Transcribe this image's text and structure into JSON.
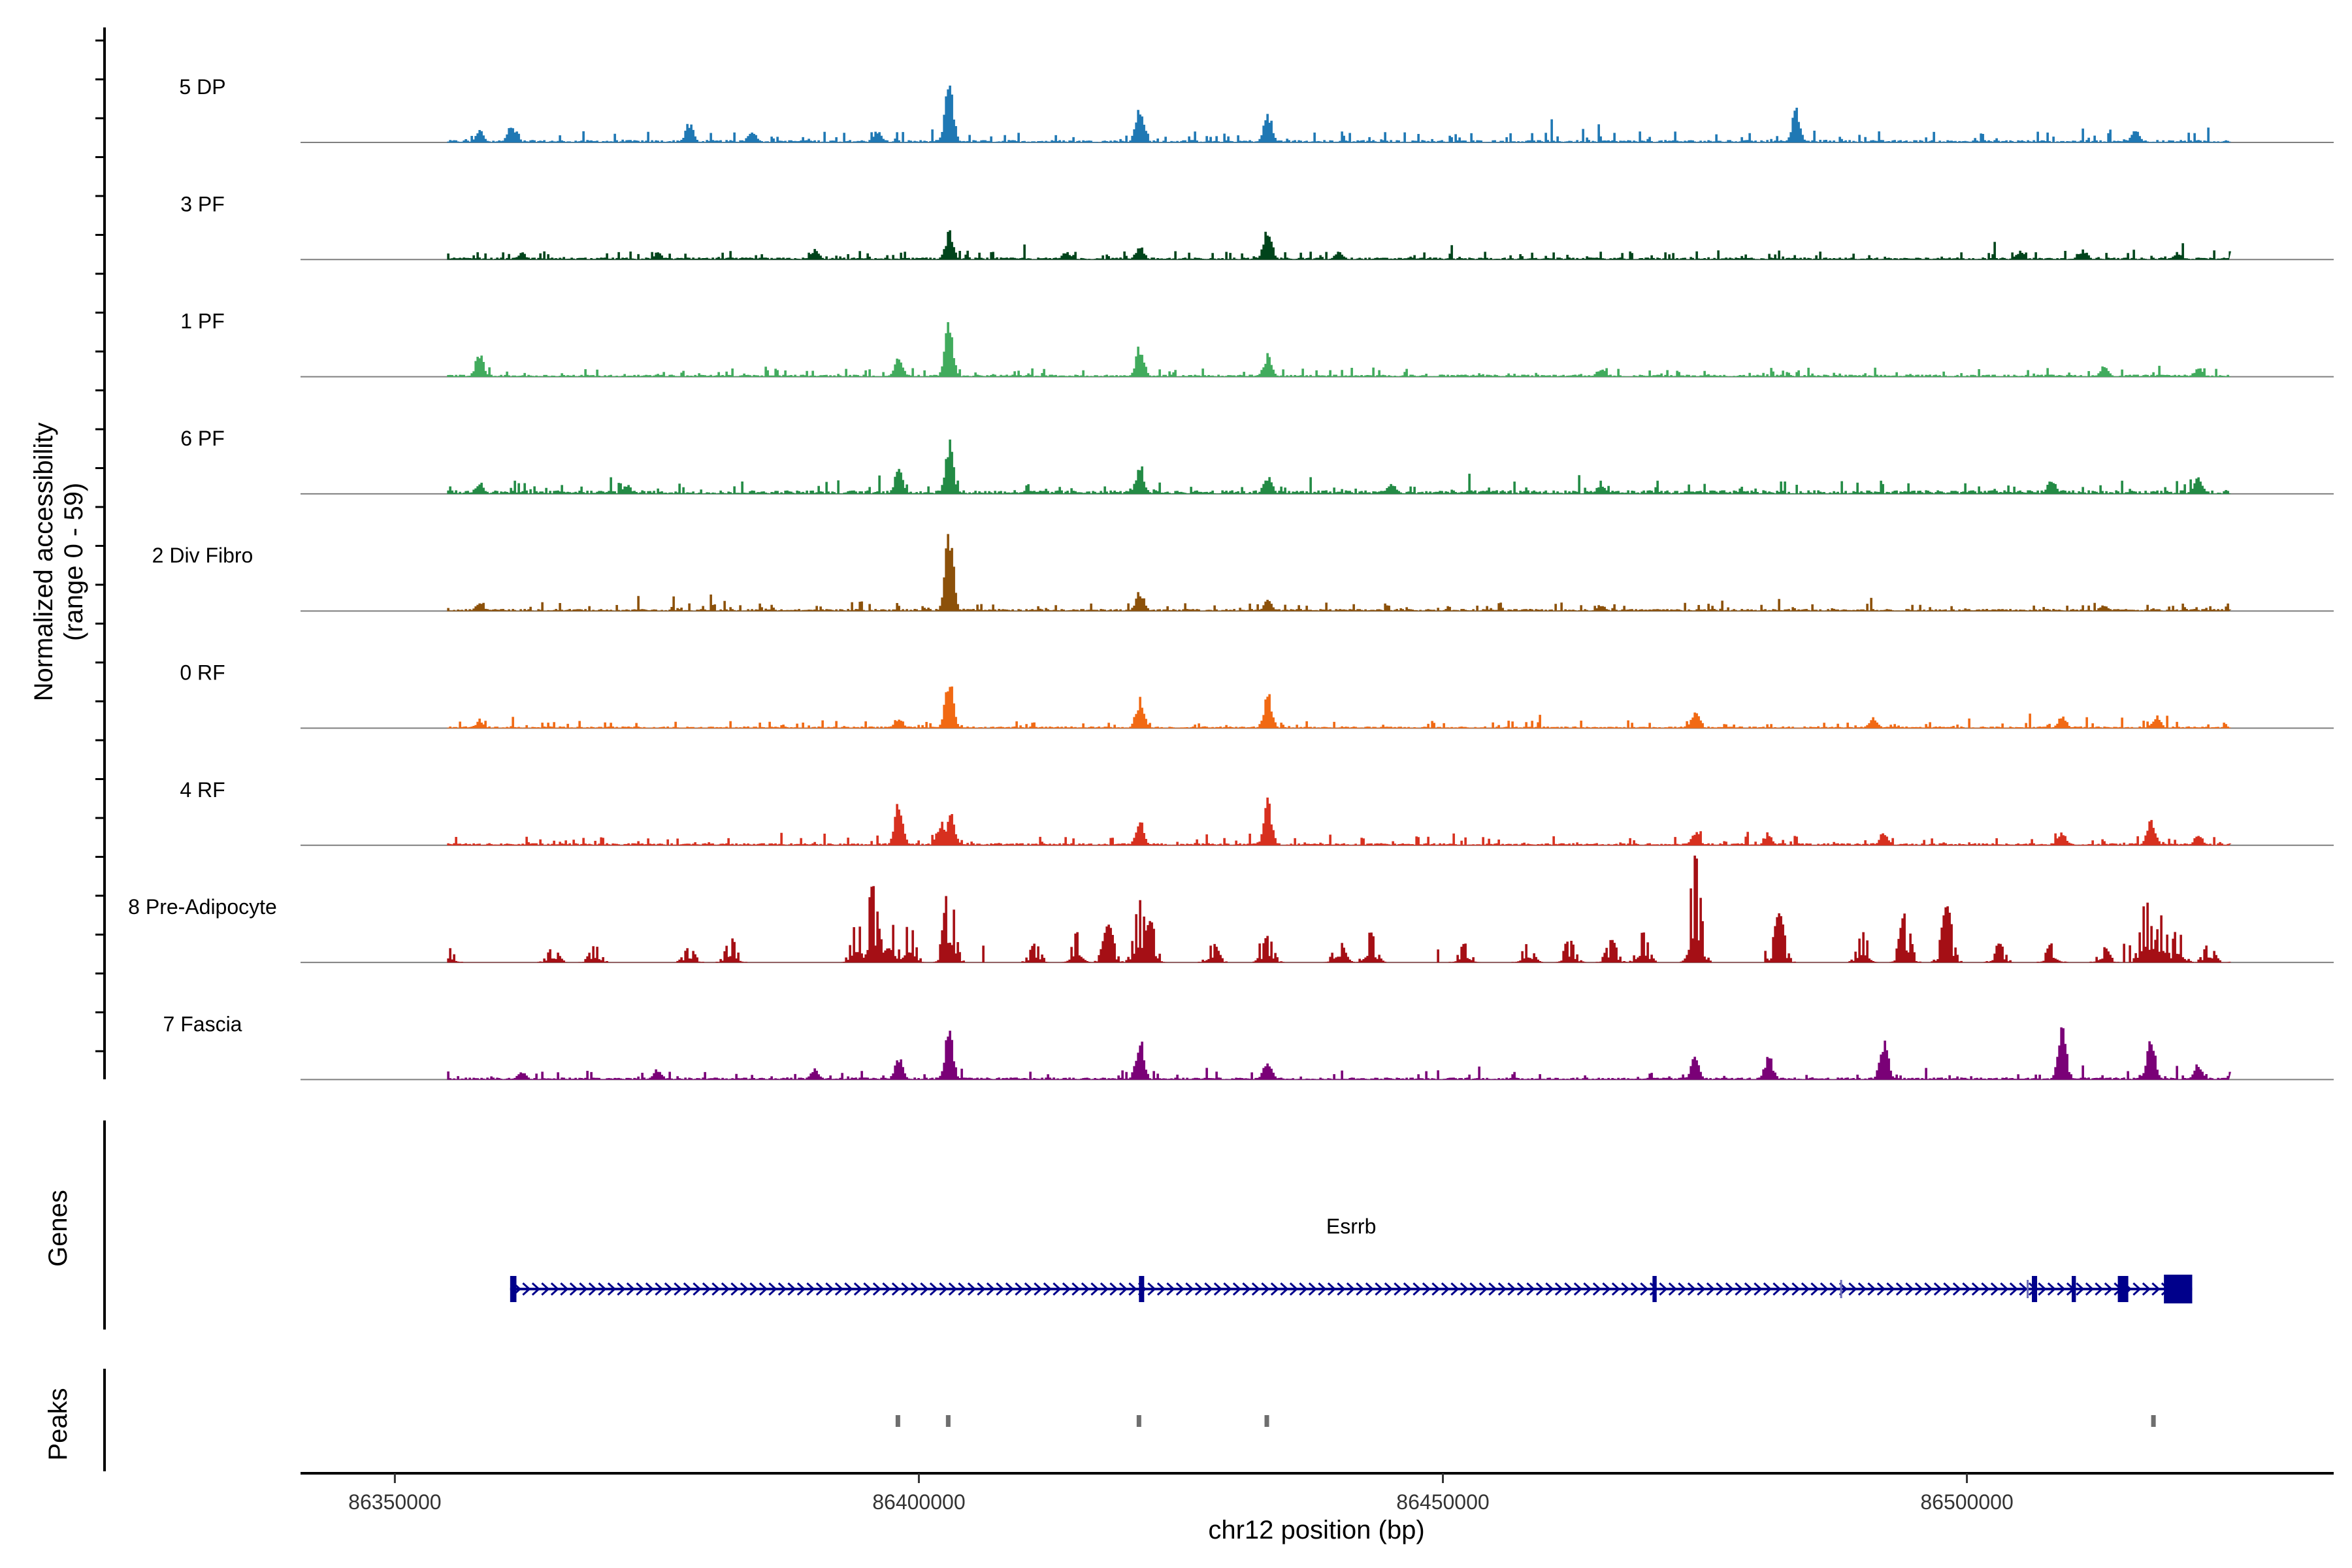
{
  "chart_data": {
    "type": "area",
    "title": "",
    "xlabel": "chr12 position (bp)",
    "ylabel": [
      "Normalized accessibility",
      "(range 0 - 59)"
    ],
    "y_range": [
      0,
      59
    ],
    "xlim": [
      86341000,
      86535000
    ],
    "x_ticks": [
      86350000,
      86400000,
      86450000,
      86500000
    ],
    "x_tick_labels": [
      "86350000",
      "86400000",
      "86450000",
      "86500000"
    ],
    "region": {
      "start": 86355000,
      "end": 86525000
    },
    "tracks": [
      {
        "name": "5 DP",
        "color": "#1f78b4",
        "baseline": 1.2,
        "noise": 5.5,
        "sparse": false,
        "peaks": [
          [
            86358000,
            7
          ],
          [
            86361000,
            9
          ],
          [
            86378000,
            11
          ],
          [
            86384000,
            8
          ],
          [
            86396000,
            7
          ],
          [
            86402800,
            38
          ],
          [
            86421000,
            22
          ],
          [
            86433200,
            18
          ],
          [
            86483600,
            19
          ],
          [
            86516000,
            7
          ]
        ]
      },
      {
        "name": "3 PF",
        "color": "#00441b",
        "baseline": 1.0,
        "noise": 4.0,
        "sparse": false,
        "peaks": [
          [
            86362000,
            4
          ],
          [
            86375000,
            4
          ],
          [
            86390000,
            6
          ],
          [
            86402800,
            16
          ],
          [
            86414000,
            5
          ],
          [
            86421000,
            8
          ],
          [
            86433200,
            19
          ],
          [
            86440000,
            5
          ],
          [
            86505000,
            5
          ],
          [
            86511000,
            6
          ],
          [
            86520000,
            4
          ]
        ]
      },
      {
        "name": "1 PF",
        "color": "#41ab5d",
        "baseline": 1.0,
        "noise": 4.0,
        "sparse": false,
        "peaks": [
          [
            86358000,
            14
          ],
          [
            86398000,
            11
          ],
          [
            86402800,
            32
          ],
          [
            86421000,
            18
          ],
          [
            86433200,
            13
          ],
          [
            86465000,
            5
          ],
          [
            86513000,
            6
          ],
          [
            86522000,
            5
          ]
        ]
      },
      {
        "name": "6 PF",
        "color": "#238b45",
        "baseline": 1.8,
        "noise": 5.5,
        "sparse": false,
        "peaks": [
          [
            86358000,
            7
          ],
          [
            86372000,
            6
          ],
          [
            86398000,
            16
          ],
          [
            86402800,
            31
          ],
          [
            86421000,
            17
          ],
          [
            86433200,
            11
          ],
          [
            86445000,
            6
          ],
          [
            86465000,
            6
          ],
          [
            86508000,
            9
          ],
          [
            86522000,
            9
          ]
        ]
      },
      {
        "name": "2 Div Fibro",
        "color": "#8c510a",
        "baseline": 1.0,
        "noise": 4.0,
        "sparse": false,
        "peaks": [
          [
            86358000,
            5
          ],
          [
            86402800,
            49
          ],
          [
            86421000,
            12
          ],
          [
            86433200,
            6
          ],
          [
            86465000,
            4
          ],
          [
            86513000,
            4
          ]
        ]
      },
      {
        "name": "0 RF",
        "color": "#f16913",
        "baseline": 0.8,
        "noise": 3.5,
        "sparse": false,
        "peaks": [
          [
            86358000,
            4
          ],
          [
            86398000,
            6
          ],
          [
            86402800,
            29
          ],
          [
            86421000,
            17
          ],
          [
            86433200,
            20
          ],
          [
            86474000,
            10
          ],
          [
            86491000,
            6
          ],
          [
            86509000,
            7
          ],
          [
            86518000,
            7
          ]
        ]
      },
      {
        "name": "4 RF",
        "color": "#d7301f",
        "baseline": 1.0,
        "noise": 4.0,
        "sparse": false,
        "peaks": [
          [
            86398000,
            26
          ],
          [
            86402000,
            14
          ],
          [
            86403000,
            18
          ],
          [
            86421000,
            14
          ],
          [
            86433200,
            26
          ],
          [
            86474000,
            9
          ],
          [
            86481000,
            5
          ],
          [
            86492000,
            8
          ],
          [
            86509000,
            8
          ],
          [
            86517500,
            17
          ],
          [
            86522000,
            6
          ]
        ]
      },
      {
        "name": "8 Pre-Adipocyte",
        "color": "#a50f15",
        "baseline": 0,
        "noise": 0,
        "sparse": true,
        "peaks": [
          [
            86355000,
            8
          ],
          [
            86365000,
            8
          ],
          [
            86369000,
            9
          ],
          [
            86378000,
            8
          ],
          [
            86382000,
            13
          ],
          [
            86394000,
            22
          ],
          [
            86395500,
            41
          ],
          [
            86397000,
            30
          ],
          [
            86399000,
            21
          ],
          [
            86402800,
            42
          ],
          [
            86411000,
            10
          ],
          [
            86415000,
            16
          ],
          [
            86418000,
            20
          ],
          [
            86421000,
            33
          ],
          [
            86422000,
            22
          ],
          [
            86428000,
            10
          ],
          [
            86433200,
            14
          ],
          [
            86440000,
            12
          ],
          [
            86443000,
            16
          ],
          [
            86452000,
            10
          ],
          [
            86458000,
            10
          ],
          [
            86462000,
            12
          ],
          [
            86466000,
            12
          ],
          [
            86469000,
            16
          ],
          [
            86474000,
            57
          ],
          [
            86482000,
            26
          ],
          [
            86490000,
            16
          ],
          [
            86494000,
            26
          ],
          [
            86498000,
            30
          ],
          [
            86503000,
            10
          ],
          [
            86508000,
            10
          ],
          [
            86513000,
            8
          ],
          [
            86517000,
            33
          ],
          [
            86518500,
            25
          ],
          [
            86520000,
            18
          ],
          [
            86523000,
            10
          ],
          [
            86526000,
            8
          ]
        ]
      },
      {
        "name": "7 Fascia",
        "color": "#7a0177",
        "baseline": 1.0,
        "noise": 4.0,
        "sparse": false,
        "peaks": [
          [
            86362000,
            5
          ],
          [
            86375000,
            6
          ],
          [
            86390000,
            6
          ],
          [
            86398000,
            14
          ],
          [
            86402800,
            29
          ],
          [
            86421000,
            25
          ],
          [
            86433200,
            12
          ],
          [
            86474000,
            14
          ],
          [
            86481000,
            14
          ],
          [
            86492000,
            24
          ],
          [
            86509000,
            31
          ],
          [
            86517500,
            27
          ],
          [
            86522000,
            9
          ]
        ]
      }
    ],
    "genes": [
      {
        "name": "Esrrb",
        "strand": "+",
        "start": 86361000,
        "end": 86521500,
        "exons": [
          [
            86361000,
            86361600
          ],
          [
            86421000,
            86421500
          ],
          [
            86470000,
            86470400
          ],
          [
            86506200,
            86506700
          ],
          [
            86510000,
            86510400
          ],
          [
            86514400,
            86515400
          ],
          [
            86518800,
            86521500
          ]
        ],
        "minor_ticks": [
          86488000,
          86505800
        ]
      }
    ],
    "peaks_track": [
      86398000,
      86402800,
      86421000,
      86433200,
      86517800
    ],
    "panel_labels": {
      "genes": "Genes",
      "peaks": "Peaks"
    },
    "colors": {
      "gene": "#00008b",
      "peak": "#6e6e6e",
      "axis": "#000000",
      "baseline_line": "#7f7f7f"
    }
  }
}
